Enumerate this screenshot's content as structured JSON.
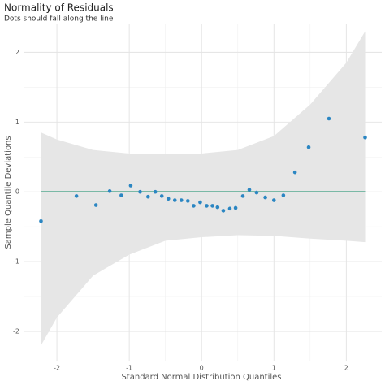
{
  "chart_data": {
    "type": "scatter",
    "title": "Normality of Residuals",
    "subtitle": "Dots should fall along the line",
    "x_label": "Standard Normal Distribution Quantiles",
    "y_label": "Sample Quantile Deviations",
    "xlim": [
      -2.45,
      2.49
    ],
    "ylim": [
      -2.43,
      2.4
    ],
    "xticks": [
      -2,
      -1,
      0,
      1,
      2
    ],
    "yticks": [
      -2,
      -1,
      0,
      1,
      2
    ],
    "xminor": [
      -1.5,
      -0.5,
      0.5,
      1.5
    ],
    "yminor": [
      -1.5,
      -0.5,
      0.5,
      1.5
    ],
    "grid": true,
    "color": "#2b86c2",
    "reference_line": {
      "y": 0,
      "x": [
        -2.22,
        2.26
      ],
      "color": "#3a9e80"
    },
    "band": {
      "color": "#e6e6e6",
      "x": [
        -2.22,
        -2,
        -1.5,
        -1,
        -0.5,
        0,
        0.5,
        1,
        1.5,
        2,
        2.26
      ],
      "upper": [
        0.85,
        0.75,
        0.6,
        0.55,
        0.55,
        0.55,
        0.6,
        0.8,
        1.25,
        1.85,
        2.3
      ],
      "lower": [
        -2.2,
        -1.8,
        -1.2,
        -0.9,
        -0.7,
        -0.65,
        -0.62,
        -0.63,
        -0.67,
        -0.7,
        -0.72
      ]
    },
    "x": [
      -2.22,
      -1.73,
      -1.46,
      -1.27,
      -1.11,
      -0.98,
      -0.85,
      -0.74,
      -0.64,
      -0.55,
      -0.46,
      -0.37,
      -0.28,
      -0.19,
      -0.11,
      -0.02,
      0.07,
      0.15,
      0.22,
      0.3,
      0.39,
      0.47,
      0.57,
      0.66,
      0.76,
      0.88,
      1.0,
      1.13,
      1.29,
      1.48,
      1.76,
      2.26
    ],
    "values": [
      -0.42,
      -0.06,
      -0.19,
      0.01,
      -0.05,
      0.09,
      0.0,
      -0.07,
      0.0,
      -0.06,
      -0.1,
      -0.12,
      -0.12,
      -0.13,
      -0.2,
      -0.15,
      -0.2,
      -0.2,
      -0.22,
      -0.27,
      -0.24,
      -0.23,
      -0.06,
      0.03,
      -0.01,
      -0.08,
      -0.12,
      -0.05,
      0.28,
      0.64,
      1.05,
      0.78
    ]
  }
}
